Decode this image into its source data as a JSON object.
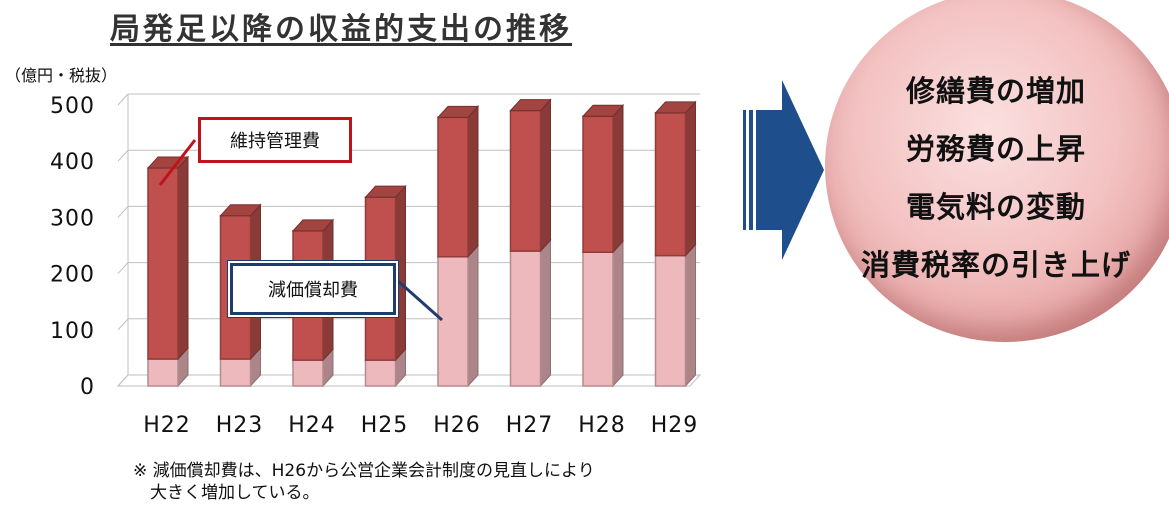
{
  "title": "局発足以降の収益的支出の推移",
  "unit_label": "（億円・税抜）",
  "chart_data": {
    "type": "bar",
    "stacked": true,
    "categories": [
      "H22",
      "H23",
      "H24",
      "H25",
      "H26",
      "H27",
      "H28",
      "H29"
    ],
    "series": [
      {
        "name": "減価償却費",
        "values": [
          48,
          48,
          46,
          46,
          230,
          240,
          238,
          232
        ],
        "color": "#eeb9bd"
      },
      {
        "name": "維持管理費",
        "values": [
          340,
          255,
          230,
          290,
          248,
          250,
          242,
          254
        ],
        "color": "#c0504d"
      }
    ],
    "ylim": [
      0,
      500
    ],
    "yticks": [
      "0",
      "100",
      "200",
      "300",
      "400",
      "500"
    ],
    "grid": true
  },
  "callouts": {
    "maintenance": "維持管理費",
    "depreciation": "減価償却費"
  },
  "note": {
    "line1": "※ 減価償却費は、H26から公営企業会計制度の見直しにより",
    "line2": "大きく増加している。"
  },
  "circle_items": [
    "修繕費の増加",
    "労務費の上昇",
    "電気料の変動",
    "消費税率の引き上げ"
  ],
  "colors": {
    "bar_top": "#c0504d",
    "bar_bottom": "#eeb9bd",
    "arrow": "#1f4e8c",
    "callout_red": "#c0121b",
    "callout_blue": "#1f3c6e"
  }
}
